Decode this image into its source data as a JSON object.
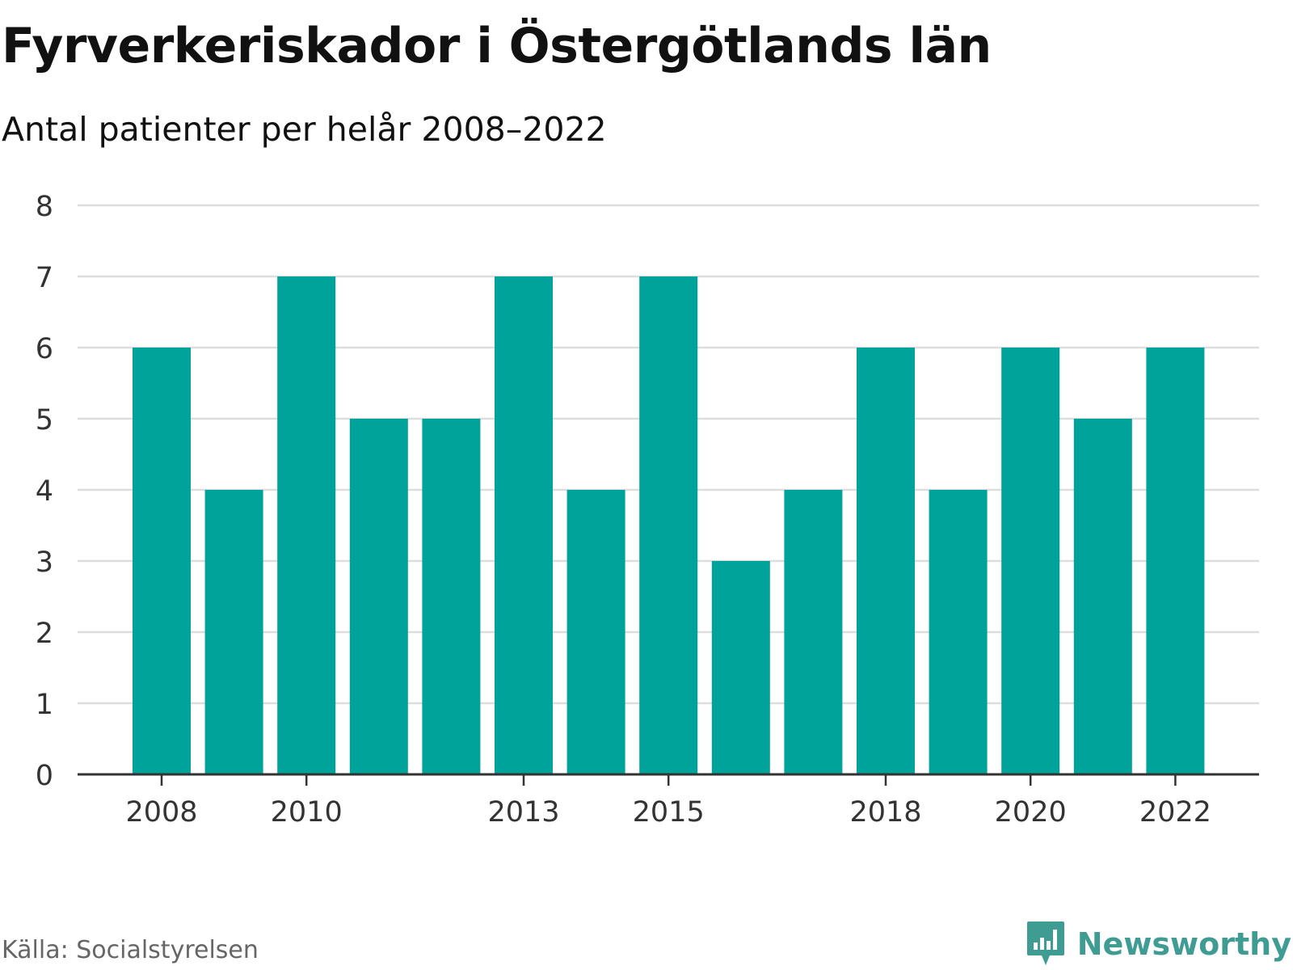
{
  "header": {
    "title": "Fyrverkeriskador i Östergötlands län",
    "subtitle": "Antal patienter per helår 2008–2022"
  },
  "footer": {
    "source": "Källa: Socialstyrelsen",
    "brand": "Newsworthy",
    "brand_icon": "newsworthy-chart-bubble-icon"
  },
  "colors": {
    "bar": "#00a39a",
    "grid": "#dddddd",
    "axis": "#333333",
    "brand": "#3f9c93"
  },
  "chart_data": {
    "type": "bar",
    "categories": [
      "2008",
      "2009",
      "2010",
      "2011",
      "2012",
      "2013",
      "2014",
      "2015",
      "2016",
      "2017",
      "2018",
      "2019",
      "2020",
      "2021",
      "2022"
    ],
    "values": [
      6,
      4,
      7,
      5,
      5,
      7,
      4,
      7,
      3,
      4,
      6,
      4,
      6,
      5,
      6
    ],
    "x_tick_labels": [
      "2008",
      "2010",
      "2013",
      "2015",
      "2018",
      "2020",
      "2022"
    ],
    "y_ticks": [
      0,
      1,
      2,
      3,
      4,
      5,
      6,
      7,
      8
    ],
    "ylim": [
      0,
      8
    ],
    "grid": true,
    "legend": "none"
  }
}
